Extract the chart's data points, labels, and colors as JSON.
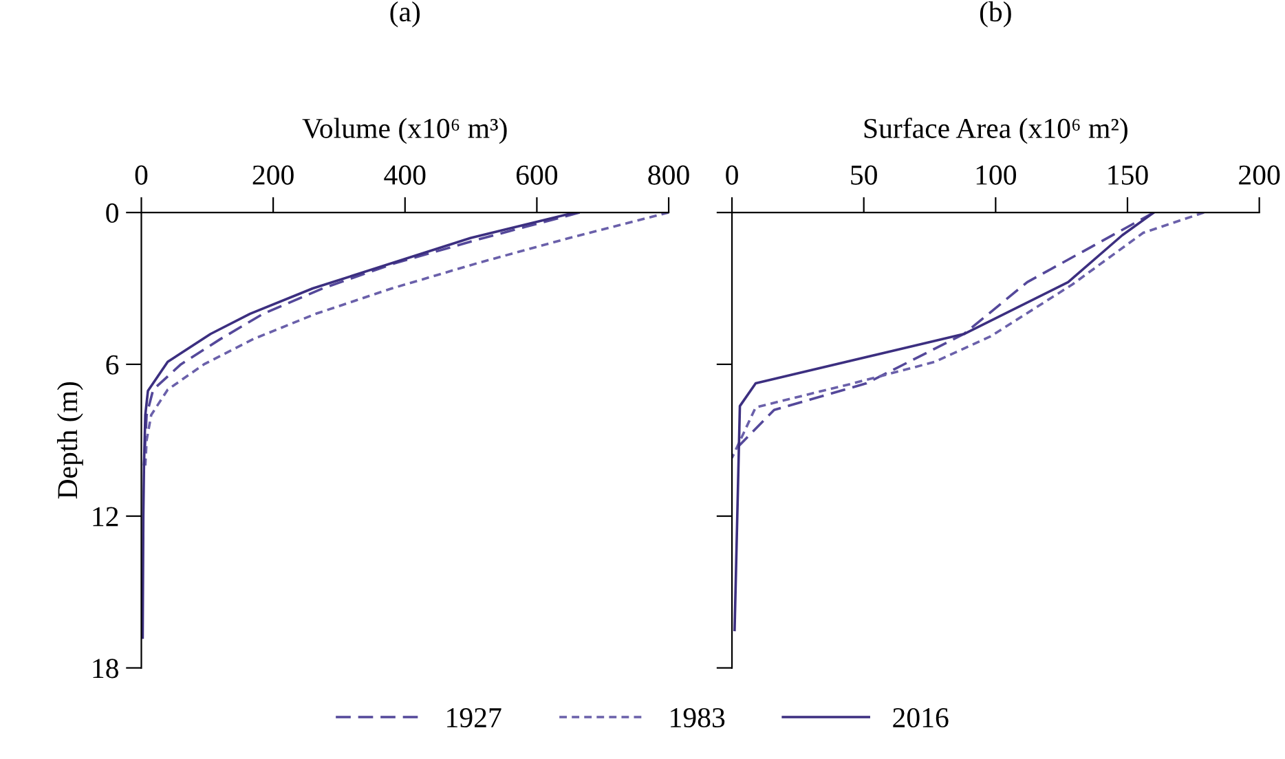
{
  "chart_data": [
    {
      "type": "line",
      "title": "(a)",
      "xlabel": "Volume (x10⁶ m³)",
      "ylabel": "Depth (m)",
      "xlim": [
        0,
        800
      ],
      "xticks": [
        0,
        200,
        400,
        600,
        800
      ],
      "ylim": [
        18,
        0
      ],
      "yticks": [
        0,
        6,
        12,
        18
      ],
      "grid": false,
      "legend": "bottom",
      "series": [
        {
          "name": "1927",
          "color": "#54489a",
          "line_style": "dashed",
          "x": [
            665,
            520,
            385,
            275,
            185,
            120,
            60,
            18,
            8,
            5,
            4
          ],
          "values": [
            0,
            1,
            2,
            3,
            4,
            5,
            6,
            7,
            8,
            9.5,
            10
          ]
        },
        {
          "name": "1983",
          "color": "#6a60aa",
          "line_style": "dotted",
          "x": [
            800,
            650,
            510,
            380,
            265,
            170,
            95,
            40,
            15,
            8,
            6
          ],
          "values": [
            0,
            1,
            2,
            3,
            4,
            5,
            6,
            7,
            8,
            9,
            10
          ]
        },
        {
          "name": "2016",
          "color": "#3c2f80",
          "line_style": "solid",
          "x": [
            658,
            500,
            380,
            260,
            165,
            105,
            40,
            10,
            6,
            4,
            3,
            2
          ],
          "values": [
            0,
            1,
            2,
            3,
            4,
            4.8,
            5.9,
            7.05,
            8,
            10,
            12,
            16.8
          ]
        }
      ]
    },
    {
      "type": "line",
      "title": "(b)",
      "xlabel": "Surface Area (x10⁶ m²)",
      "xlim": [
        0,
        200
      ],
      "xticks": [
        0,
        50,
        100,
        150,
        200
      ],
      "ylim": [
        18,
        0
      ],
      "yticks": [
        0,
        6,
        12,
        18
      ],
      "tick_labels": "x",
      "grid": false,
      "series": [
        {
          "name": "1927",
          "color": "#54489a",
          "line_style": "dashed",
          "x": [
            160,
            112,
            88,
            51,
            16,
            0
          ],
          "values": [
            0,
            2.75,
            4.8,
            6.75,
            7.8,
            9.5
          ]
        },
        {
          "name": "1983",
          "color": "#6a60aa",
          "line_style": "dotted",
          "x": [
            179,
            156,
            129,
            98,
            77,
            46,
            9,
            0
          ],
          "values": [
            0,
            0.8,
            2.85,
            4.9,
            5.9,
            6.75,
            7.7,
            9.7
          ]
        },
        {
          "name": "2016",
          "color": "#3c2f80",
          "line_style": "solid",
          "x": [
            160,
            148,
            127.5,
            88,
            9,
            3,
            1
          ],
          "values": [
            0,
            0.9,
            2.75,
            4.8,
            6.75,
            7.65,
            16.5
          ]
        }
      ]
    }
  ]
}
